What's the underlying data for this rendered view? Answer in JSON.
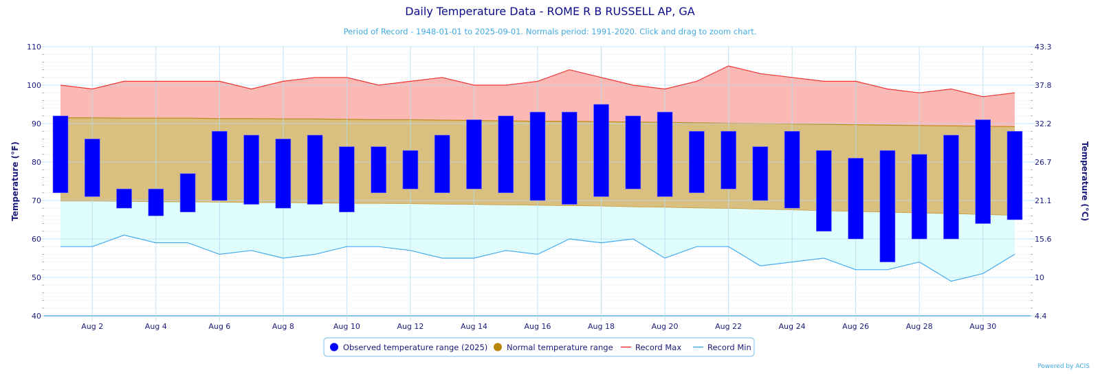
{
  "colors": {
    "observed": "#0000ff",
    "normal_fill": "#d9bf80",
    "normal_line": "#c08a1a",
    "record_max_line": "#ee3333",
    "record_max_fill": "#fbb9b5",
    "record_min_line": "#44aaee",
    "record_min_fill": "#e0fdfd",
    "grid": "#b8dcf0",
    "text": "#1a1a7a"
  },
  "chart_data": {
    "type": "bar",
    "title": "Daily Temperature Data - ROME R B RUSSELL AP, GA",
    "subtitle": "Period of Record - 1948-01-01 to 2025-09-01. Normals period: 1991-2020. Click and drag to zoom chart.",
    "ylabel": "Temperature (°F)",
    "ylabel_right": "Temperature (°C)",
    "ylim": [
      40,
      110
    ],
    "yticks": [
      40,
      50,
      60,
      70,
      80,
      90,
      100,
      110
    ],
    "yticks_right": [
      "4.4",
      "10",
      "15.6",
      "21.1",
      "26.7",
      "32.2",
      "37.8",
      "43.3"
    ],
    "xlim": [
      1,
      31
    ],
    "x_tick_days": [
      2,
      4,
      6,
      8,
      10,
      12,
      14,
      16,
      18,
      20,
      22,
      24,
      26,
      28,
      30
    ],
    "x_tick_labels": [
      "Aug 2",
      "Aug 4",
      "Aug 6",
      "Aug 8",
      "Aug 10",
      "Aug 12",
      "Aug 14",
      "Aug 16",
      "Aug 18",
      "Aug 20",
      "Aug 22",
      "Aug 24",
      "Aug 26",
      "Aug 28",
      "Aug 30"
    ],
    "days": [
      1,
      2,
      3,
      4,
      5,
      6,
      7,
      8,
      9,
      10,
      11,
      12,
      13,
      14,
      15,
      16,
      17,
      18,
      19,
      20,
      21,
      22,
      23,
      24,
      25,
      26,
      27,
      28,
      29,
      30,
      31
    ],
    "grid": true,
    "legend_position": "bottom-center",
    "series": [
      {
        "name": "Observed temperature range (2025)",
        "kind": "range-bar",
        "high": [
          92,
          86,
          73,
          73,
          77,
          88,
          87,
          86,
          87,
          84,
          84,
          83,
          87,
          91,
          92,
          93,
          93,
          95,
          92,
          93,
          88,
          88,
          84,
          88,
          83,
          81,
          83,
          82,
          87,
          91,
          88
        ],
        "low": [
          72,
          71,
          68,
          66,
          67,
          70,
          69,
          68,
          69,
          67,
          72,
          73,
          72,
          73,
          72,
          70,
          69,
          71,
          73,
          71,
          72,
          73,
          70,
          68,
          62,
          60,
          54,
          60,
          60,
          64,
          65
        ]
      },
      {
        "name": "Normal temperature range",
        "kind": "range-area",
        "high": [
          91.5,
          91.5,
          91.4,
          91.4,
          91.4,
          91.3,
          91.3,
          91.2,
          91.2,
          91.1,
          91.0,
          91.0,
          90.9,
          90.8,
          90.7,
          90.6,
          90.6,
          90.5,
          90.4,
          90.3,
          90.2,
          90.1,
          90.0,
          89.9,
          89.8,
          89.7,
          89.6,
          89.5,
          89.4,
          89.3,
          89.2
        ],
        "low": [
          69.8,
          69.8,
          69.7,
          69.6,
          69.6,
          69.5,
          69.4,
          69.4,
          69.3,
          69.2,
          69.2,
          69.1,
          69.0,
          68.9,
          68.8,
          68.7,
          68.6,
          68.5,
          68.3,
          68.2,
          68.0,
          67.9,
          67.7,
          67.5,
          67.3,
          67.1,
          66.9,
          66.7,
          66.5,
          66.3,
          66.1
        ]
      },
      {
        "name": "Record Max",
        "kind": "line",
        "values": [
          100,
          99,
          101,
          101,
          101,
          101,
          99,
          101,
          102,
          102,
          100,
          101,
          102,
          100,
          100,
          101,
          104,
          102,
          100,
          99,
          101,
          105,
          103,
          102,
          101,
          101,
          99,
          98,
          99,
          97,
          98
        ]
      },
      {
        "name": "Record Min",
        "kind": "line",
        "values": [
          58,
          58,
          61,
          59,
          59,
          56,
          57,
          55,
          56,
          58,
          58,
          57,
          55,
          55,
          57,
          56,
          60,
          59,
          60,
          55,
          58,
          58,
          53,
          54,
          55,
          52,
          52,
          54,
          49,
          51,
          56
        ]
      }
    ],
    "credit": "Powered by ACIS"
  }
}
